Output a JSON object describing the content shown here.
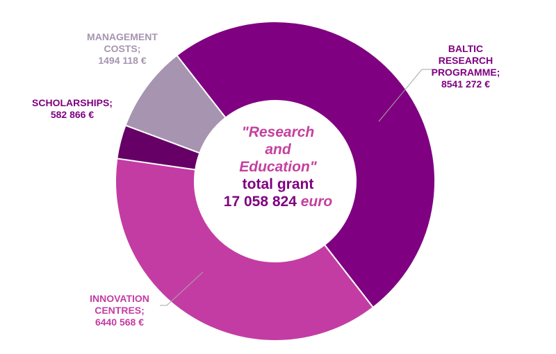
{
  "chart_data": {
    "type": "pie",
    "donut": true,
    "center_text": {
      "line1": "\"Research",
      "line2": "and",
      "line3": "Education\"",
      "line4": "total grant",
      "amount": "17 058 824",
      "unit": "euro"
    },
    "slices": [
      {
        "label_lines": [
          "BALTIC",
          "RESEARCH",
          "PROGRAMME;"
        ],
        "value_text": "8541 272 €",
        "value": 8541272,
        "color": "#7f0080"
      },
      {
        "label_lines": [
          "INNOVATION",
          "CENTRES;"
        ],
        "value_text": "6440 568 €",
        "value": 6440568,
        "color": "#c33ca3"
      },
      {
        "label_lines": [
          "SCHOLARSHIPS;"
        ],
        "value_text": "582 866 €",
        "value": 582866,
        "color": "#660066"
      },
      {
        "label_lines": [
          "MANAGEMENT",
          "COSTS;"
        ],
        "value_text": "1494 118 €",
        "value": 1494118,
        "color": "#a694b0"
      }
    ]
  }
}
